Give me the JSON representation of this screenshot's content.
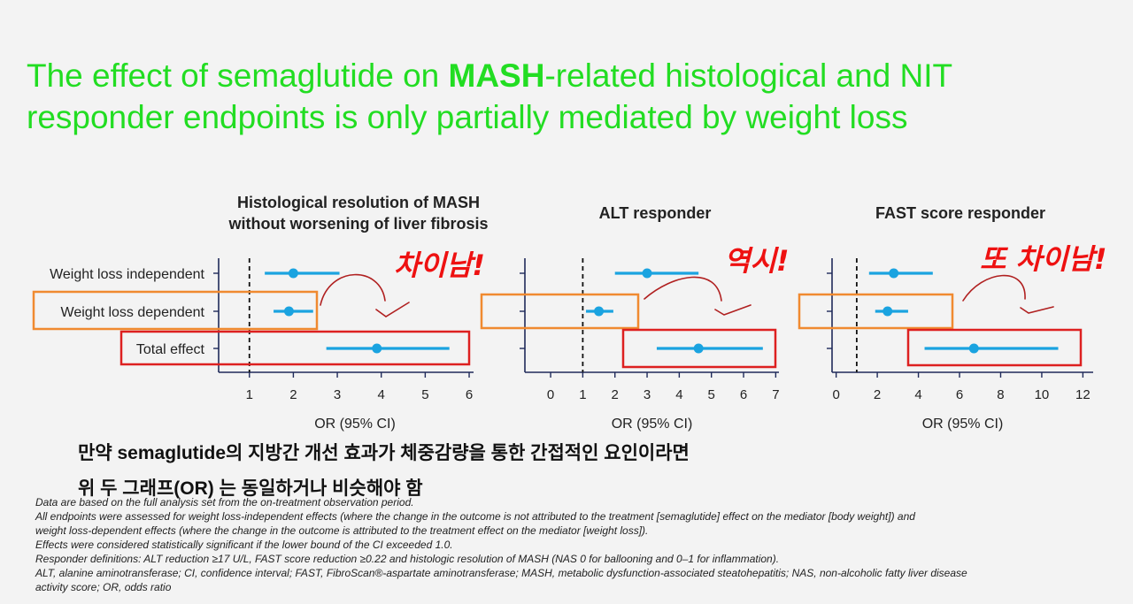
{
  "title": {
    "part1": "The effect of semaglutide on ",
    "bold": "MASH",
    "part2": "-related histological and NIT responder endpoints is only partially mediated by weight loss"
  },
  "row_labels": [
    "Weight loss independent",
    "Weight loss dependent",
    "Total effect"
  ],
  "annotations": {
    "panel1": "차이남!",
    "panel2": "역시!",
    "panel3": "또 차이남!"
  },
  "korean_note": {
    "line1_prefix": "만약 ",
    "line1_bold": "semaglutide",
    "line1_rest": "의 지방간 개선 효과가 체중감량을 통한 간접적인 요인이라면",
    "line2": "위 두 그래프(OR) 는 동일하거나 비슷해야 함"
  },
  "footnotes": [
    "Data are based on the full analysis set from the on-treatment observation period.",
    "All endpoints were assessed for weight loss-independent effects (where the change in the outcome is not attributed to the treatment [semaglutide] effect on the mediator [body weight]) and",
    "weight loss-dependent effects (where the change in the outcome is attributed to the treatment effect on the mediator [weight loss]).",
    "Effects were considered statistically significant if the lower bound of the CI exceeded 1.0.",
    "Responder definitions: ALT reduction ≥17 U/L, FAST score reduction ≥0.22 and histologic resolution of MASH (NAS 0 for ballooning and 0–1 for inflammation).",
    "ALT, alanine aminotransferase; CI, confidence interval; FAST, FibroScan®-aspartate aminotransferase; MASH, metabolic dysfunction-associated steatohepatitis; NAS, non-alcoholic fatty liver disease",
    "activity score; OR, odds ratio"
  ],
  "colors": {
    "title": "#22dd22",
    "point": "#1aa3e0",
    "orange_box": "#f08a30",
    "red_box": "#dd2020",
    "annotation": "#ee1111",
    "axis": "#1f2a5a"
  },
  "chart_data": [
    {
      "type": "forest",
      "title": "Histological resolution of MASH without worsening of liver fibrosis",
      "xlabel": "OR (95% CI)",
      "xlim": [
        0.3,
        6.1
      ],
      "xticks": [
        1,
        2,
        3,
        4,
        5,
        6
      ],
      "reference_line": 1,
      "rows": [
        {
          "label": "Weight loss independent",
          "or": 2.0,
          "ci": [
            1.35,
            3.05
          ]
        },
        {
          "label": "Weight loss dependent",
          "or": 1.9,
          "ci": [
            1.55,
            2.45
          ]
        },
        {
          "label": "Total effect",
          "or": 3.9,
          "ci": [
            2.75,
            5.55
          ]
        }
      ]
    },
    {
      "type": "forest",
      "title": "ALT responder",
      "xlabel": "OR (95% CI)",
      "xlim": [
        -0.8,
        7.1
      ],
      "xticks": [
        0,
        1,
        2,
        3,
        4,
        5,
        6,
        7
      ],
      "reference_line": 1,
      "rows": [
        {
          "label": "Weight loss independent",
          "or": 3.0,
          "ci": [
            2.0,
            4.6
          ]
        },
        {
          "label": "Weight loss dependent",
          "or": 1.5,
          "ci": [
            1.1,
            1.95
          ]
        },
        {
          "label": "Total effect",
          "or": 4.6,
          "ci": [
            3.3,
            6.6
          ]
        }
      ]
    },
    {
      "type": "forest",
      "title": "FAST score responder",
      "xlabel": "OR (95% CI)",
      "xlim": [
        -0.2,
        12.5
      ],
      "xticks": [
        0,
        2,
        4,
        6,
        8,
        10,
        12
      ],
      "tick_labels": [
        "0",
        "2",
        "4",
        "6",
        "8",
        "10",
        "12"
      ],
      "reference_line": 1,
      "rows": [
        {
          "label": "Weight loss independent",
          "or": 2.8,
          "ci": [
            1.6,
            4.7
          ]
        },
        {
          "label": "Weight loss dependent",
          "or": 2.5,
          "ci": [
            1.9,
            3.5
          ]
        },
        {
          "label": "Total effect",
          "or": 6.7,
          "ci": [
            4.3,
            10.8
          ]
        }
      ]
    }
  ]
}
